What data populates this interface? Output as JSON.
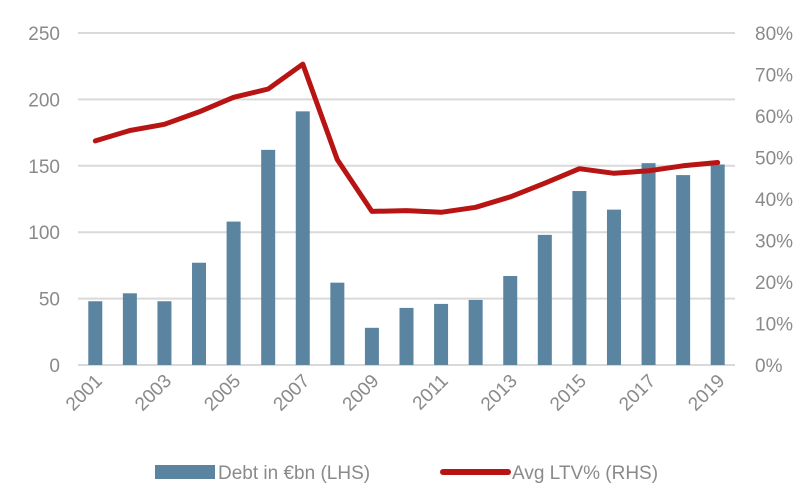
{
  "chart_data": {
    "type": "bar",
    "categories": [
      "2001",
      "2002",
      "2003",
      "2004",
      "2005",
      "2006",
      "2007",
      "2008",
      "2009",
      "2010",
      "2011",
      "2012",
      "2013",
      "2014",
      "2015",
      "2016",
      "2017",
      "2018",
      "2019"
    ],
    "x_tick_labels": [
      "2001",
      "2003",
      "2005",
      "2007",
      "2009",
      "2011",
      "2013",
      "2015",
      "2017",
      "2019"
    ],
    "series": [
      {
        "name": "Debt in €bn (LHS)",
        "type": "bar",
        "axis": "left",
        "color": "#5b84a0",
        "values": [
          48,
          54,
          48,
          77,
          108,
          162,
          191,
          62,
          28,
          43,
          46,
          49,
          67,
          98,
          131,
          117,
          152,
          143,
          151
        ]
      },
      {
        "name": "Avg LTV% (RHS)",
        "type": "line",
        "axis": "right",
        "color": "#b81414",
        "values": [
          54,
          56.5,
          58,
          61,
          64.5,
          66.5,
          72.5,
          49.5,
          37,
          37.2,
          36.8,
          38,
          40.5,
          43.8,
          47.3,
          46.2,
          46.8,
          48,
          48.8
        ]
      }
    ],
    "y_left": {
      "min": 0,
      "max": 250,
      "ticks": [
        0,
        50,
        100,
        150,
        200,
        250
      ]
    },
    "y_right": {
      "min": 0,
      "max": 80,
      "ticks": [
        "0%",
        "10%",
        "20%",
        "30%",
        "40%",
        "50%",
        "60%",
        "70%",
        "80%"
      ]
    },
    "grid": true,
    "legend_position": "bottom",
    "title": "",
    "xlabel": "",
    "ylabel": ""
  }
}
